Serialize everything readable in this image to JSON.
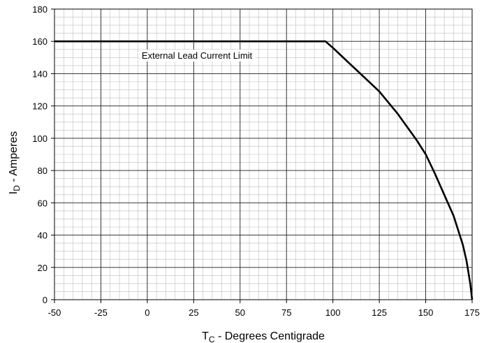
{
  "chart_data": {
    "type": "line",
    "xlabel": {
      "main": "T",
      "sub": "C",
      "rest": " - Degrees Centigrade"
    },
    "ylabel": {
      "main": "I",
      "sub": "D",
      "rest": " - Amperes"
    },
    "xlim": [
      -50,
      175
    ],
    "ylim": [
      0,
      180
    ],
    "x_ticks": [
      -50,
      -25,
      0,
      25,
      50,
      75,
      100,
      125,
      150,
      175
    ],
    "y_ticks": [
      0,
      20,
      40,
      60,
      80,
      100,
      120,
      140,
      160,
      180
    ],
    "minor_grid_x_step": 5,
    "minor_grid_y_step": 5,
    "major_grid_x_step": 25,
    "major_grid_y_step": 20,
    "grid": true,
    "annotation": "External Lead Current Limit",
    "series": [
      {
        "color": "#000000",
        "x": [
          -50,
          96,
          100,
          112,
          125,
          135,
          145,
          150,
          155,
          160,
          165,
          170,
          172,
          174,
          175
        ],
        "y": [
          160,
          160,
          156,
          143,
          129,
          115,
          99,
          90,
          78,
          65,
          52,
          34,
          24,
          10,
          0
        ]
      }
    ]
  }
}
